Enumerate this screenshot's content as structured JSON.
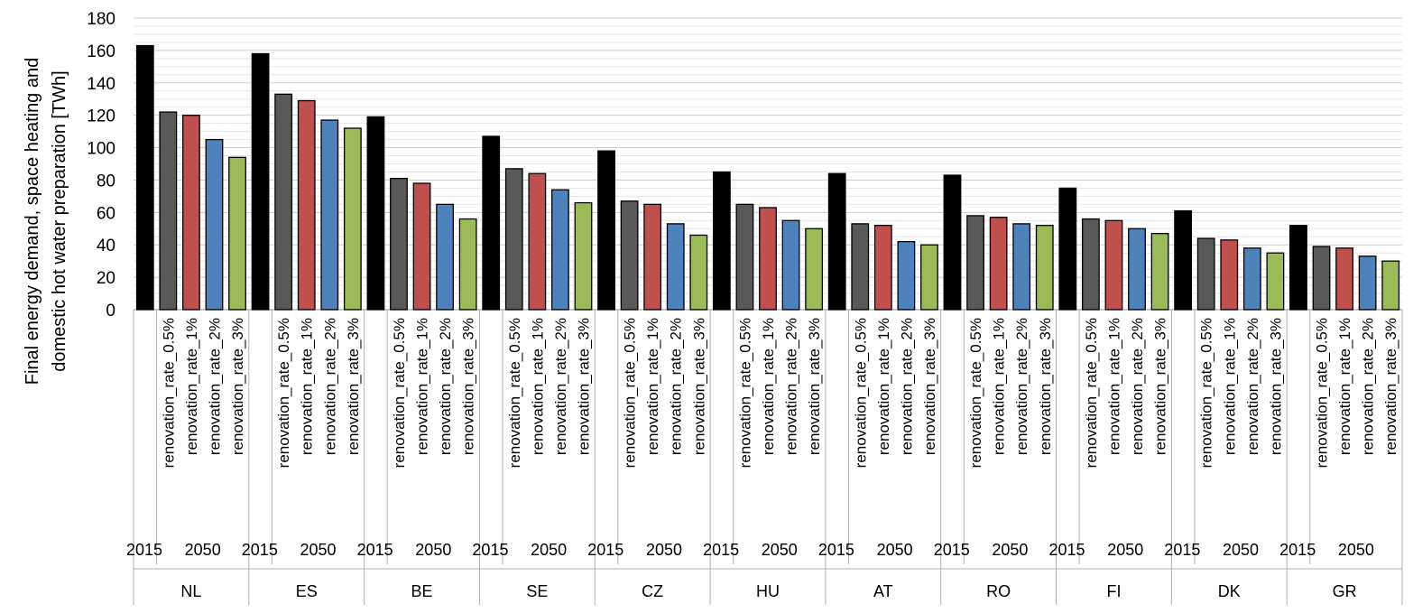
{
  "chart_data": {
    "type": "bar",
    "title": "",
    "xlabel": "",
    "ylabel_lines": [
      "Final energy demand, space heating and",
      "domestic hot water preparation [TWh]"
    ],
    "ylim": [
      0,
      180
    ],
    "yticks": [
      0,
      20,
      40,
      60,
      80,
      100,
      120,
      140,
      160,
      180
    ],
    "grid": true,
    "year_labels": [
      "2015",
      "2050"
    ],
    "scenario_labels": [
      "",
      "renovation_rate_0.5%",
      "renovation_rate_1%",
      "renovation_rate_2%",
      "renovation_rate_3%"
    ],
    "colors": [
      "#000000",
      "#595959",
      "#c0504d",
      "#4f81bd",
      "#9bbb59"
    ],
    "countries": [
      {
        "name": "NL",
        "values": [
          163,
          122,
          120,
          105,
          94
        ]
      },
      {
        "name": "ES",
        "values": [
          158,
          133,
          129,
          117,
          112
        ]
      },
      {
        "name": "BE",
        "values": [
          119,
          81,
          78,
          65,
          56
        ]
      },
      {
        "name": "SE",
        "values": [
          107,
          87,
          84,
          74,
          66
        ]
      },
      {
        "name": "CZ",
        "values": [
          98,
          67,
          65,
          53,
          46
        ]
      },
      {
        "name": "HU",
        "values": [
          85,
          65,
          63,
          55,
          50
        ]
      },
      {
        "name": "AT",
        "values": [
          84,
          53,
          52,
          42,
          40
        ]
      },
      {
        "name": "RO",
        "values": [
          83,
          58,
          57,
          53,
          52
        ]
      },
      {
        "name": "FI",
        "values": [
          75,
          56,
          55,
          50,
          47
        ]
      },
      {
        "name": "DK",
        "values": [
          61,
          44,
          43,
          38,
          35
        ]
      },
      {
        "name": "GR",
        "values": [
          52,
          39,
          38,
          33,
          30
        ]
      }
    ]
  }
}
